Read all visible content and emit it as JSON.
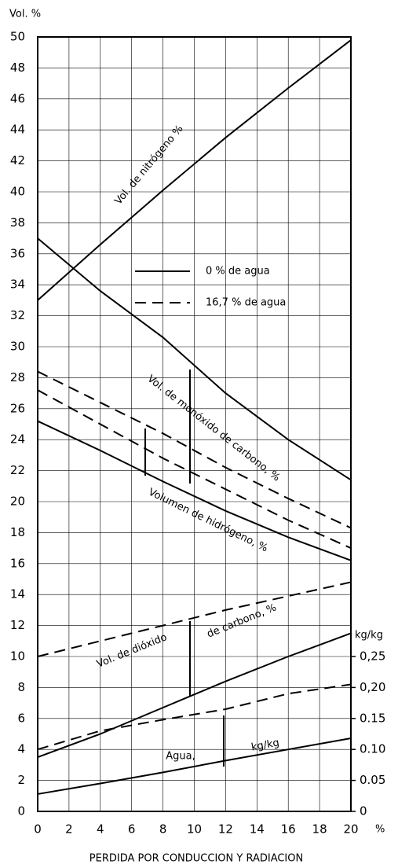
{
  "chart_data": {
    "type": "line",
    "y_label": "Vol. %",
    "x_label": "PERDIDA POR CONDUCCION Y RADIACION",
    "x_unit": "%",
    "y2_label": "kg/kg",
    "x": [
      0,
      4,
      8,
      12,
      16,
      20
    ],
    "xlim": [
      0,
      20
    ],
    "xticks": [
      0,
      2,
      4,
      6,
      8,
      10,
      12,
      14,
      16,
      18,
      20
    ],
    "ylim": [
      0,
      50
    ],
    "yticks": [
      0,
      2,
      4,
      6,
      8,
      10,
      12,
      14,
      16,
      18,
      20,
      22,
      24,
      26,
      28,
      30,
      32,
      34,
      36,
      38,
      40,
      42,
      44,
      46,
      48,
      50
    ],
    "y2lim": [
      0,
      1.25
    ],
    "y2ticks": [
      0,
      {
        "value": 0.05,
        "label": "0.05"
      },
      {
        "value": 0.1,
        "label": "0.10"
      },
      {
        "value": 0.15,
        "label": "0.15"
      },
      {
        "value": 0.2,
        "label": "0,20"
      },
      {
        "value": 0.25,
        "label": "0,25"
      }
    ],
    "grid": true,
    "legend": [
      {
        "label": "0 % de agua",
        "dashed": false
      },
      {
        "label": "16,7 % de agua",
        "dashed": true
      }
    ],
    "annotations": [
      "Vol. de nitrógeno %",
      "Vol. de monóxido de carbono, %",
      "Volumen de hidrógeno, %",
      "Vol. de dióxido",
      "de carbono, %",
      "Agua,",
      "kg/kg"
    ],
    "series": [
      {
        "color": "#000000",
        "dashed": false,
        "values": [
          33,
          36.6,
          40.1,
          43.5,
          46.7,
          49.8
        ]
      },
      {
        "color": "#000000",
        "dashed": false,
        "values": [
          37,
          33.6,
          30.6,
          27,
          24,
          21.4
        ]
      },
      {
        "color": "#000000",
        "dashed": true,
        "values": [
          28.4,
          26.4,
          24.4,
          22.2,
          20.2,
          18.3
        ]
      },
      {
        "color": "#000000",
        "dashed": true,
        "values": [
          27.2,
          25,
          22.8,
          20.8,
          18.8,
          17
        ]
      },
      {
        "color": "#000000",
        "dashed": false,
        "values": [
          25.2,
          23.3,
          21.3,
          19.4,
          17.7,
          16.2
        ]
      },
      {
        "color": "#000000",
        "dashed": true,
        "values": [
          10,
          11,
          12,
          13,
          13.9,
          14.8
        ]
      },
      {
        "color": "#000000",
        "dashed": false,
        "values": [
          3.5,
          5,
          6.7,
          8.4,
          10,
          11.5
        ]
      },
      {
        "color": "#000000",
        "dashed": true,
        "axis": "y2",
        "values": [
          0.1,
          0.13,
          0.148,
          0.165,
          0.19,
          0.205
        ]
      },
      {
        "color": "#000000",
        "dashed": false,
        "axis": "y2",
        "values": [
          0.028,
          0.045,
          0.063,
          0.082,
          0.1,
          0.118
        ]
      }
    ]
  }
}
